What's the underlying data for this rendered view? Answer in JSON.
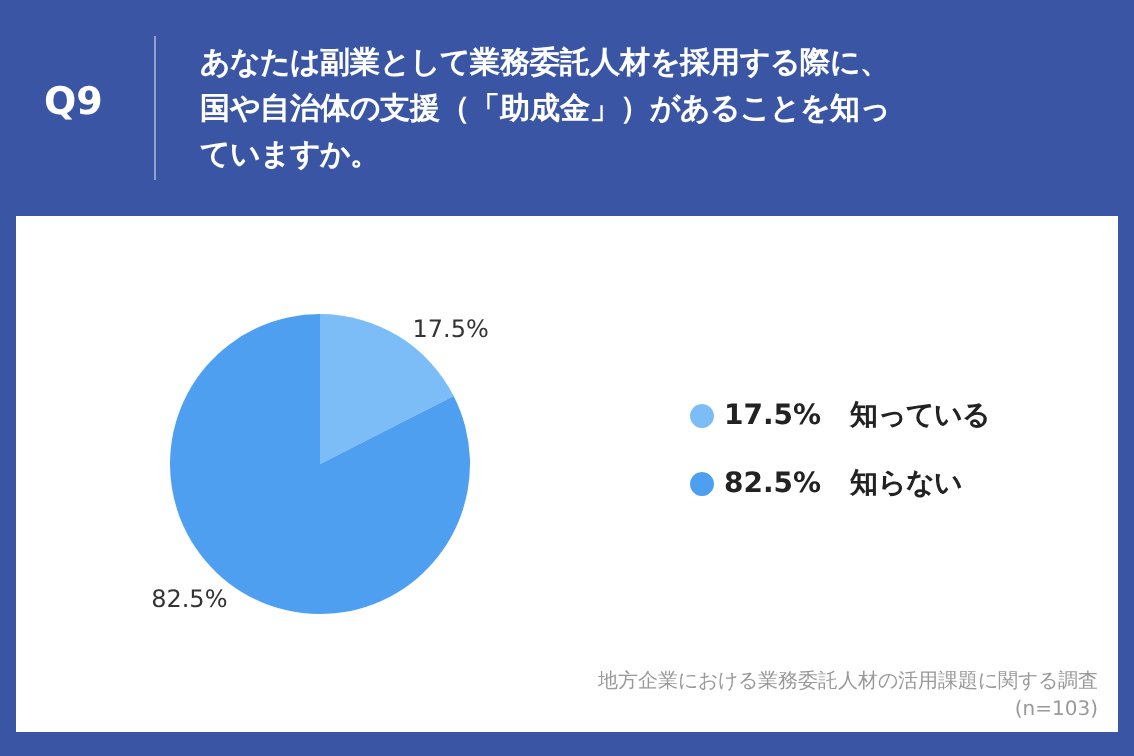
{
  "chart_data": {
    "type": "pie",
    "title": "Q9",
    "subtitle": "あなたは副業として業務委託人材を採用する際に、国や自治体の支援（「助成金」）があることを知っていますか。",
    "categories": [
      "知っている",
      "知らない"
    ],
    "values": [
      17.5,
      82.5
    ],
    "colors": [
      "#7dbdf7",
      "#4e9ff0"
    ],
    "value_labels": [
      "17.5%",
      "82.5%"
    ],
    "legend": "right",
    "annotations": [
      "地方企業における業務委託人材の活用課題に関する調査",
      "(n=103)"
    ]
  }
}
